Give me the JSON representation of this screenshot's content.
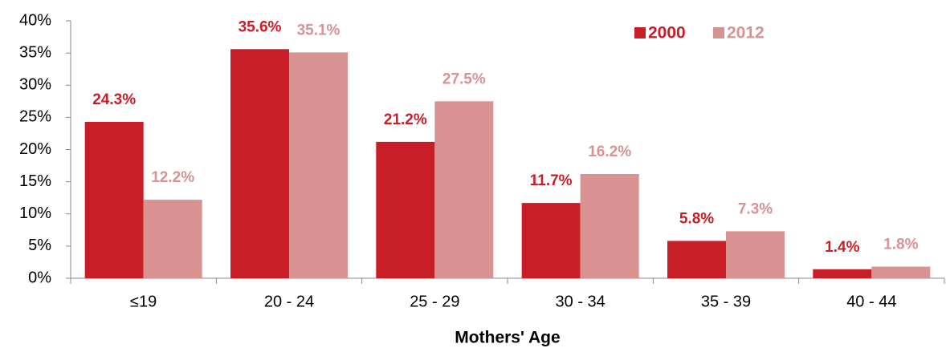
{
  "chart_data": {
    "type": "bar",
    "x_label": "Mothers' Age",
    "categories": [
      "≤19",
      "20 - 24",
      "25 - 29",
      "30 - 34",
      "35 - 39",
      "40 - 44"
    ],
    "series": [
      {
        "name": "2000",
        "color": "#c81e27",
        "values": [
          24.3,
          35.6,
          21.2,
          11.7,
          5.8,
          1.4
        ],
        "value_labels": [
          "24.3%",
          "35.6%",
          "21.2%",
          "11.7%",
          "5.8%",
          "1.4%"
        ]
      },
      {
        "name": "2012",
        "color": "#d89292",
        "values": [
          12.2,
          35.1,
          27.5,
          16.2,
          7.3,
          1.8
        ],
        "value_labels": [
          "12.2%",
          "35.1%",
          "27.5%",
          "16.2%",
          "7.3%",
          "1.8%"
        ]
      }
    ],
    "ylim": [
      0,
      40
    ],
    "yticks": [
      {
        "value": 0,
        "label": "0%"
      },
      {
        "value": 5,
        "label": "5%"
      },
      {
        "value": 10,
        "label": "10%"
      },
      {
        "value": 15,
        "label": "15%"
      },
      {
        "value": 20,
        "label": "20%"
      },
      {
        "value": 25,
        "label": "25%"
      },
      {
        "value": 30,
        "label": "30%"
      },
      {
        "value": 35,
        "label": "35%"
      },
      {
        "value": 40,
        "label": "40%"
      }
    ],
    "legend": "top-right"
  }
}
